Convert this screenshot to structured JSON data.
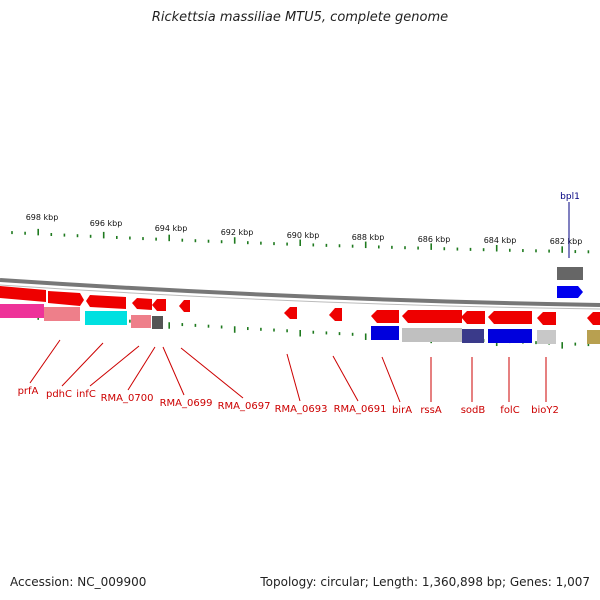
{
  "title": "Rickettsia massiliae MTU5, complete genome",
  "footer": {
    "accession": "Accession: NC_009900",
    "summary": "Topology: circular; Length: 1,360,898 bp; Genes: 1,007"
  },
  "tick_labels": [
    "698 kbp",
    "696 kbp",
    "694 kbp",
    "692 kbp",
    "690 kbp",
    "688 kbp",
    "686 kbp",
    "684 kbp",
    "682 kbp"
  ],
  "gene_labels": [
    "prfA",
    "pdhC",
    "infC",
    "RMA_0700",
    "RMA_0699",
    "RMA_0697",
    "RMA_0693",
    "RMA_0691",
    "birA",
    "rssA",
    "sodB",
    "folC",
    "bioY2"
  ],
  "top_label": "bpl1",
  "colors": {
    "ticks": "#1f7a1f",
    "leader": "#cc0000",
    "label": "#cc0000",
    "backbone": "#888888",
    "red_cds": "#ee0000",
    "blue": "#0000dd",
    "cyan": "#00e0e0",
    "pink": "#ee3399",
    "navy_label": "#000080"
  }
}
